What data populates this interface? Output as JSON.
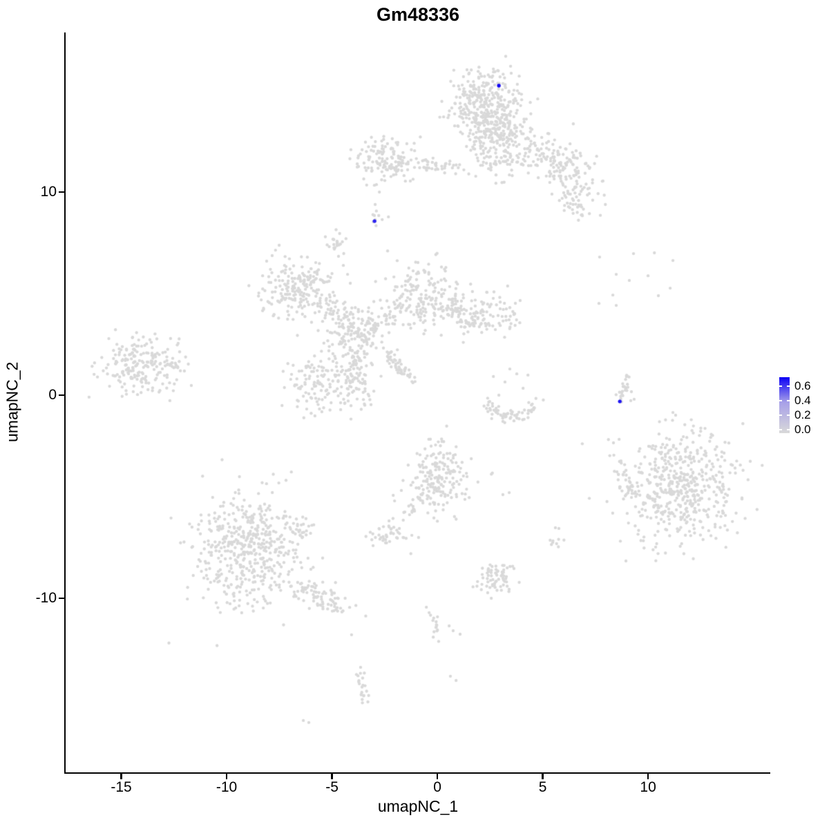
{
  "title": "Gm48336",
  "axes": {
    "x": {
      "label": "umapNC_1",
      "ticks": [
        -15,
        -10,
        -5,
        0,
        5,
        10
      ],
      "tick_labels": [
        "-15",
        "-10",
        "-5",
        "0",
        "5",
        "10"
      ]
    },
    "y": {
      "label": "umapNC_2",
      "ticks": [
        10,
        0,
        -10
      ],
      "tick_labels": [
        "10",
        "0",
        "-10"
      ]
    }
  },
  "legend": {
    "tick_labels": [
      "0.6",
      "0.4",
      "0.2",
      "0.0"
    ],
    "tick_values": [
      0.6,
      0.4,
      0.2,
      0.0
    ],
    "bar_domain": [
      -0.05,
      0.72
    ],
    "low_color": "#d9d9d9",
    "mid_color": "#a7a0e8",
    "high_color": "#0b00f5"
  },
  "chart_data": {
    "type": "scatter",
    "title": "Gm48336",
    "xlabel": "umapNC_1",
    "ylabel": "umapNC_2",
    "xlim": [
      -17.64,
      15.8
    ],
    "ylim": [
      -18.54,
      17.86
    ],
    "grid": false,
    "legend_position": "right",
    "point_color_low": "#d9d9d9",
    "point_color_high": "#0b00f5",
    "point_radius": 2.2,
    "highlight_radius": 2.7,
    "seed": 42,
    "clusters": [
      {
        "type": "gauss",
        "cx": 2.2,
        "cy": 14.52,
        "sx": 0.92,
        "sy": 0.75,
        "n": 280
      },
      {
        "type": "gauss",
        "cx": 2.36,
        "cy": 12.82,
        "sx": 0.59,
        "sy": 0.48,
        "n": 80
      },
      {
        "type": "gauss",
        "cx": 2.79,
        "cy": 11.8,
        "sx": 0.72,
        "sy": 0.61,
        "n": 90
      },
      {
        "type": "line",
        "x1": 2.69,
        "y1": 13.5,
        "x2": 5.97,
        "y2": 11.12,
        "w": 0.46,
        "n": 150
      },
      {
        "type": "gauss",
        "cx": 6.13,
        "cy": 11.29,
        "sx": 0.66,
        "sy": 0.61,
        "n": 70
      },
      {
        "type": "gauss",
        "cx": 6.72,
        "cy": 9.66,
        "sx": 0.59,
        "sy": 0.54,
        "n": 60
      },
      {
        "type": "gauss",
        "cx": -2.39,
        "cy": 11.63,
        "sx": 0.72,
        "sy": 0.54,
        "n": 130
      },
      {
        "type": "line",
        "x1": -1.08,
        "y1": 11.39,
        "x2": 1.05,
        "y2": 11.22,
        "w": 0.16,
        "n": 40
      },
      {
        "type": "gauss",
        "cx": -2.85,
        "cy": 8.81,
        "sx": 0.23,
        "sy": 0.2,
        "n": 9
      },
      {
        "type": "gauss",
        "cx": -4.79,
        "cy": 7.52,
        "sx": 0.26,
        "sy": 0.27,
        "n": 20
      },
      {
        "type": "gauss",
        "cx": -6.98,
        "cy": 5.17,
        "sx": 0.82,
        "sy": 0.75,
        "n": 150
      },
      {
        "type": "line",
        "x1": -6.33,
        "y1": 5.68,
        "x2": -5.34,
        "y2": 5.92,
        "w": 0.3,
        "n": 35
      },
      {
        "type": "line",
        "x1": -6.0,
        "y1": 4.76,
        "x2": -4.1,
        "y2": 3.71,
        "w": 0.33,
        "n": 55
      },
      {
        "type": "gauss",
        "cx": -3.84,
        "cy": 3.13,
        "sx": 0.66,
        "sy": 0.61,
        "n": 130
      },
      {
        "type": "gauss",
        "cx": -0.59,
        "cy": 4.9,
        "sx": 0.85,
        "sy": 0.82,
        "n": 170
      },
      {
        "type": "line",
        "x1": -3.11,
        "y1": 3.54,
        "x2": -1.48,
        "y2": 4.29,
        "w": 0.33,
        "n": 45
      },
      {
        "type": "gauss",
        "cx": 2.2,
        "cy": 3.98,
        "sx": 0.79,
        "sy": 0.54,
        "n": 110
      },
      {
        "type": "line",
        "x1": 0.49,
        "y1": 4.32,
        "x2": 1.28,
        "y2": 4.15,
        "w": 0.3,
        "n": 25
      },
      {
        "type": "line",
        "x1": -3.97,
        "y1": 2.55,
        "x2": -3.77,
        "y2": 0.14,
        "w": 0.39,
        "n": 90
      },
      {
        "type": "gauss",
        "cx": -5.48,
        "cy": 0.54,
        "sx": 0.82,
        "sy": 0.75,
        "n": 140
      },
      {
        "type": "line",
        "x1": -2.46,
        "y1": 2.04,
        "x2": -1.18,
        "y2": 0.68,
        "w": 0.13,
        "n": 50
      },
      {
        "type": "gauss",
        "cx": -14.2,
        "cy": 1.36,
        "sx": 0.98,
        "sy": 0.75,
        "n": 200
      },
      {
        "type": "line",
        "x1": -12.89,
        "y1": 1.5,
        "x2": -12.16,
        "y2": 1.5,
        "w": 0.2,
        "n": 15
      },
      {
        "type": "arc",
        "cx": 3.51,
        "cy": 0.14,
        "r": 1.25,
        "a0": 195,
        "a1": 345,
        "w": 0.18,
        "n": 65
      },
      {
        "type": "line",
        "x1": 8.66,
        "y1": -0.2,
        "x2": 9.08,
        "y2": 0.99,
        "w": 0.12,
        "n": 22
      },
      {
        "type": "gauss",
        "cx": 11.54,
        "cy": -4.52,
        "sx": 1.38,
        "sy": 1.36,
        "n": 520
      },
      {
        "type": "gauss",
        "cx": 8.95,
        "cy": -4.39,
        "sx": 0.33,
        "sy": 0.41,
        "n": 30
      },
      {
        "type": "gauss",
        "cx": -8.95,
        "cy": -7.59,
        "sx": 1.26,
        "sy": 1.43,
        "n": 500
      },
      {
        "type": "gauss",
        "cx": -6.56,
        "cy": -6.46,
        "sx": 0.3,
        "sy": 0.3,
        "n": 20
      },
      {
        "type": "line",
        "x1": -6.98,
        "y1": -9.29,
        "x2": -4.3,
        "y2": -10.48,
        "w": 0.33,
        "n": 80
      },
      {
        "type": "gauss",
        "cx": 0.13,
        "cy": -4.01,
        "sx": 0.72,
        "sy": 0.85,
        "n": 180
      },
      {
        "type": "line",
        "x1": -0.69,
        "y1": -4.86,
        "x2": -1.48,
        "y2": -6.05,
        "w": 0.15,
        "n": 20
      },
      {
        "type": "gauss",
        "cx": -2.36,
        "cy": -6.9,
        "sx": 0.46,
        "sy": 0.31,
        "n": 42
      },
      {
        "type": "gauss",
        "cx": 5.61,
        "cy": -7.07,
        "sx": 0.2,
        "sy": 0.31,
        "n": 10
      },
      {
        "type": "gauss",
        "cx": 2.79,
        "cy": -9.08,
        "sx": 0.49,
        "sy": 0.48,
        "n": 65
      },
      {
        "type": "line",
        "x1": -0.3,
        "y1": -10.61,
        "x2": 0.13,
        "y2": -12.07,
        "w": 0.12,
        "n": 14
      },
      {
        "type": "line",
        "x1": -3.74,
        "y1": -13.4,
        "x2": -3.34,
        "y2": -15.31,
        "w": 0.15,
        "n": 22
      }
    ],
    "singles": [
      [
        -2.89,
        10.37
      ],
      [
        -2.75,
        10.0
      ],
      [
        -3.48,
        11.43
      ],
      [
        -3.74,
        11.26
      ],
      [
        -3.28,
        11.19
      ],
      [
        -2.95,
        9.39
      ],
      [
        -4.69,
        6.84
      ],
      [
        -4.46,
        6.39
      ],
      [
        -4.26,
        5.95
      ],
      [
        -4.13,
        5.51
      ],
      [
        -8.1,
        6.6
      ],
      [
        -7.25,
        6.39
      ],
      [
        -7.84,
        6.87
      ],
      [
        -1.15,
        6.12
      ],
      [
        -0.92,
        6.53
      ],
      [
        -1.31,
        5.71
      ],
      [
        -12.66,
        2.79
      ],
      [
        -12.3,
        2.55
      ],
      [
        2.66,
        0.92
      ],
      [
        3.21,
        0.65
      ],
      [
        3.77,
        1.05
      ],
      [
        2.92,
        0.0
      ],
      [
        4.07,
        0.34
      ],
      [
        2.62,
        -0.54
      ],
      [
        4.3,
        0.99
      ],
      [
        3.44,
        1.29
      ],
      [
        9.02,
        0.54
      ],
      [
        9.21,
        0.17
      ],
      [
        9.34,
        -0.2
      ],
      [
        9.18,
        -0.27
      ],
      [
        7.7,
        6.8
      ],
      [
        9.31,
        6.97
      ],
      [
        10.3,
        7.01
      ],
      [
        11.18,
        6.63
      ],
      [
        8.49,
        5.95
      ],
      [
        10.0,
        5.88
      ],
      [
        9.11,
        5.65
      ],
      [
        8.33,
        4.93
      ],
      [
        8.49,
        4.42
      ],
      [
        7.67,
        4.52
      ],
      [
        10.49,
        4.9
      ],
      [
        11.05,
        5.27
      ],
      [
        9.57,
        -2.76
      ],
      [
        1.61,
        -3.13
      ],
      [
        1.41,
        -4.01
      ],
      [
        -1.21,
        -6.9
      ],
      [
        -0.89,
        -7.01
      ],
      [
        -3.05,
        -7.41
      ],
      [
        3.11,
        -4.9
      ],
      [
        3.41,
        -4.8
      ],
      [
        2.56,
        -10.0
      ],
      [
        2.39,
        -9.73
      ],
      [
        -0.52,
        -10.44
      ],
      [
        -0.39,
        -10.71
      ],
      [
        0.56,
        -11.36
      ],
      [
        0.75,
        -11.6
      ],
      [
        1.08,
        -11.77
      ],
      [
        0.62,
        -13.84
      ],
      [
        0.89,
        -14.05
      ],
      [
        -4.07,
        -11.8
      ],
      [
        -6.36,
        -16.02
      ],
      [
        -6.1,
        -16.12
      ]
    ],
    "highlighted_points": [
      {
        "x": 2.92,
        "y": 15.24,
        "value": 0.7
      },
      {
        "x": -2.98,
        "y": 8.57,
        "value": 0.6
      },
      {
        "x": 8.66,
        "y": -0.31,
        "value": 0.65
      }
    ]
  }
}
